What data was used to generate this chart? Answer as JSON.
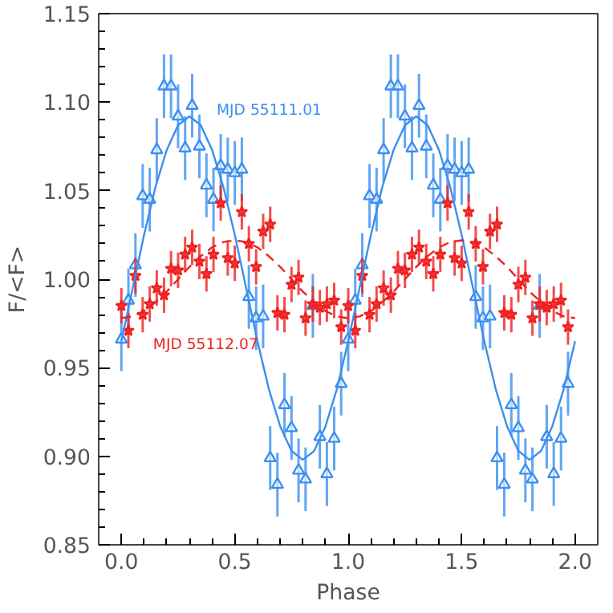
{
  "chart_data": {
    "type": "scatter",
    "xlabel": "Phase",
    "ylabel": "F/<F>",
    "xlim": [
      -0.1,
      2.1
    ],
    "ylim": [
      0.85,
      1.15
    ],
    "xticks": [
      {
        "value": 0,
        "label": "0.0"
      },
      0.5,
      {
        "value": 1,
        "label": "1.0"
      },
      1.5,
      {
        "value": 2,
        "label": "2.0"
      }
    ],
    "yticks": [
      0.85,
      {
        "value": 0.9,
        "label": "0.90"
      },
      0.95,
      {
        "value": 1,
        "label": "1.00"
      },
      1.05,
      {
        "value": 1.1,
        "label": "1.10"
      },
      1.15
    ],
    "grid": false,
    "series": [
      {
        "name": "MJD 55111.01",
        "color": "#3a8ef0",
        "marker": "triangle",
        "x": [
          0,
          0.031,
          0.062,
          0.094,
          0.125,
          0.156,
          0.188,
          0.219,
          0.25,
          0.281,
          0.312,
          0.344,
          0.375,
          0.406,
          0.438,
          0.469,
          0.5,
          0.531,
          0.562,
          0.594,
          0.625,
          0.656,
          0.688,
          0.719,
          0.75,
          0.781,
          0.812,
          0.844,
          0.875,
          0.906,
          0.938,
          0.969,
          1,
          1.031,
          1.062,
          1.094,
          1.125,
          1.156,
          1.188,
          1.219,
          1.25,
          1.281,
          1.312,
          1.344,
          1.375,
          1.406,
          1.438,
          1.469,
          1.5,
          1.531,
          1.562,
          1.594,
          1.625,
          1.656,
          1.688,
          1.719,
          1.75,
          1.781,
          1.812,
          1.844,
          1.875,
          1.906,
          1.938,
          1.969
        ],
        "values": [
          0.966,
          0.988,
          1.008,
          1.047,
          1.045,
          1.073,
          1.109,
          1.109,
          1.092,
          1.074,
          1.098,
          1.075,
          1.053,
          1.045,
          1.064,
          1.062,
          1.06,
          1.062,
          0.99,
          0.978,
          0.979,
          0.899,
          0.884,
          0.929,
          0.916,
          0.892,
          0.887,
          0.985,
          0.911,
          0.89,
          0.91,
          0.941,
          0.966,
          0.988,
          1.008,
          1.047,
          1.045,
          1.073,
          1.109,
          1.109,
          1.092,
          1.074,
          1.098,
          1.075,
          1.053,
          1.045,
          1.064,
          1.062,
          1.06,
          1.062,
          0.99,
          0.978,
          0.979,
          0.899,
          0.884,
          0.929,
          0.916,
          0.892,
          0.887,
          0.985,
          0.911,
          0.89,
          0.91,
          0.941
        ],
        "errors": [
          0.018,
          0.018,
          0.018,
          0.018,
          0.018,
          0.018,
          0.018,
          0.018,
          0.018,
          0.018,
          0.018,
          0.018,
          0.018,
          0.018,
          0.018,
          0.018,
          0.018,
          0.018,
          0.018,
          0.018,
          0.018,
          0.018,
          0.018,
          0.018,
          0.018,
          0.018,
          0.018,
          0.018,
          0.018,
          0.018,
          0.018,
          0.018,
          0.018,
          0.018,
          0.018,
          0.018,
          0.018,
          0.018,
          0.018,
          0.018,
          0.018,
          0.018,
          0.018,
          0.018,
          0.018,
          0.018,
          0.018,
          0.018,
          0.018,
          0.018,
          0.018,
          0.018,
          0.018,
          0.018,
          0.018,
          0.018,
          0.018,
          0.018,
          0.018,
          0.018,
          0.018,
          0.018,
          0.018,
          0.018
        ]
      },
      {
        "name": "MJD 55112.07",
        "color": "#f02020",
        "marker": "star",
        "x": [
          0,
          0.031,
          0.062,
          0.094,
          0.125,
          0.156,
          0.188,
          0.219,
          0.25,
          0.281,
          0.312,
          0.344,
          0.375,
          0.406,
          0.438,
          0.469,
          0.5,
          0.531,
          0.562,
          0.594,
          0.625,
          0.656,
          0.688,
          0.719,
          0.75,
          0.781,
          0.812,
          0.844,
          0.875,
          0.906,
          0.938,
          0.969,
          1,
          1.031,
          1.062,
          1.094,
          1.125,
          1.156,
          1.188,
          1.219,
          1.25,
          1.281,
          1.312,
          1.344,
          1.375,
          1.406,
          1.438,
          1.469,
          1.5,
          1.531,
          1.562,
          1.594,
          1.625,
          1.656,
          1.688,
          1.719,
          1.75,
          1.781,
          1.812,
          1.844,
          1.875,
          1.906,
          1.938,
          1.969
        ],
        "values": [
          0.985,
          0.971,
          1.002,
          0.98,
          0.986,
          0.995,
          0.991,
          1.006,
          1.005,
          1.014,
          1.018,
          1.01,
          1.003,
          1.014,
          1.043,
          1.012,
          1.009,
          1.038,
          1.02,
          1.007,
          1.027,
          1.031,
          0.981,
          0.98,
          0.997,
          1.001,
          0.978,
          0.986,
          0.984,
          0.986,
          0.988,
          0.973,
          0.985,
          0.971,
          1.002,
          0.98,
          0.986,
          0.995,
          0.991,
          1.006,
          1.005,
          1.014,
          1.018,
          1.01,
          1.003,
          1.014,
          1.043,
          1.012,
          1.009,
          1.038,
          1.02,
          1.007,
          1.027,
          1.031,
          0.981,
          0.98,
          0.997,
          1.001,
          0.978,
          0.986,
          0.984,
          0.986,
          0.988,
          0.973
        ],
        "errors": [
          0.01,
          0.01,
          0.01,
          0.01,
          0.01,
          0.01,
          0.01,
          0.01,
          0.01,
          0.01,
          0.01,
          0.01,
          0.01,
          0.01,
          0.01,
          0.01,
          0.01,
          0.01,
          0.01,
          0.01,
          0.01,
          0.01,
          0.01,
          0.01,
          0.01,
          0.01,
          0.01,
          0.01,
          0.01,
          0.01,
          0.01,
          0.01,
          0.01,
          0.01,
          0.01,
          0.01,
          0.01,
          0.01,
          0.01,
          0.01,
          0.01,
          0.01,
          0.01,
          0.01,
          0.01,
          0.01,
          0.01,
          0.01,
          0.01,
          0.01,
          0.01,
          0.01,
          0.01,
          0.01,
          0.01,
          0.01,
          0.01,
          0.01,
          0.01,
          0.01,
          0.01,
          0.01,
          0.01,
          0.01
        ]
      },
      {
        "type": "line",
        "color": "#3a8ef0",
        "line_style": "solid",
        "x": [
          0,
          0.05,
          0.1,
          0.15,
          0.2,
          0.25,
          0.3,
          0.35,
          0.4,
          0.45,
          0.5,
          0.55,
          0.6,
          0.65,
          0.7,
          0.75,
          0.8,
          0.85,
          0.9,
          0.95,
          1,
          1.05,
          1.1,
          1.15,
          1.2,
          1.25,
          1.3,
          1.35,
          1.4,
          1.45,
          1.5,
          1.55,
          1.6,
          1.65,
          1.7,
          1.75,
          1.8,
          1.85,
          1.9,
          1.95,
          2
        ],
        "values": [
          0.965,
          0.995,
          1.025,
          1.052,
          1.073,
          1.087,
          1.092,
          1.087,
          1.073,
          1.052,
          1.025,
          0.995,
          0.965,
          0.938,
          0.917,
          0.903,
          0.898,
          0.903,
          0.917,
          0.938,
          0.965,
          0.995,
          1.025,
          1.052,
          1.073,
          1.087,
          1.092,
          1.087,
          1.073,
          1.052,
          1.025,
          0.995,
          0.965,
          0.938,
          0.917,
          0.903,
          0.898,
          0.903,
          0.917,
          0.938,
          0.965
        ]
      },
      {
        "type": "line",
        "color": "#f02020",
        "line_style": "dashed",
        "x": [
          0,
          0.05,
          0.1,
          0.15,
          0.2,
          0.25,
          0.3,
          0.35,
          0.4,
          0.45,
          0.5,
          0.55,
          0.6,
          0.65,
          0.7,
          0.75,
          0.8,
          0.85,
          0.9,
          0.95,
          1,
          1.05,
          1.1,
          1.15,
          1.2,
          1.25,
          1.3,
          1.35,
          1.4,
          1.45,
          1.5,
          1.55,
          1.6,
          1.65,
          1.7,
          1.75,
          1.8,
          1.85,
          1.9,
          1.95,
          2
        ],
        "values": [
          0.978,
          0.979,
          0.982,
          0.987,
          0.993,
          1.0,
          1.007,
          1.013,
          1.018,
          1.021,
          1.022,
          1.021,
          1.018,
          1.013,
          1.007,
          1.0,
          0.993,
          0.987,
          0.982,
          0.979,
          0.978,
          0.979,
          0.982,
          0.987,
          0.993,
          1.0,
          1.007,
          1.013,
          1.018,
          1.021,
          1.022,
          1.021,
          1.018,
          1.013,
          1.007,
          1.0,
          0.993,
          0.987,
          0.982,
          0.979,
          0.978
        ]
      }
    ]
  }
}
